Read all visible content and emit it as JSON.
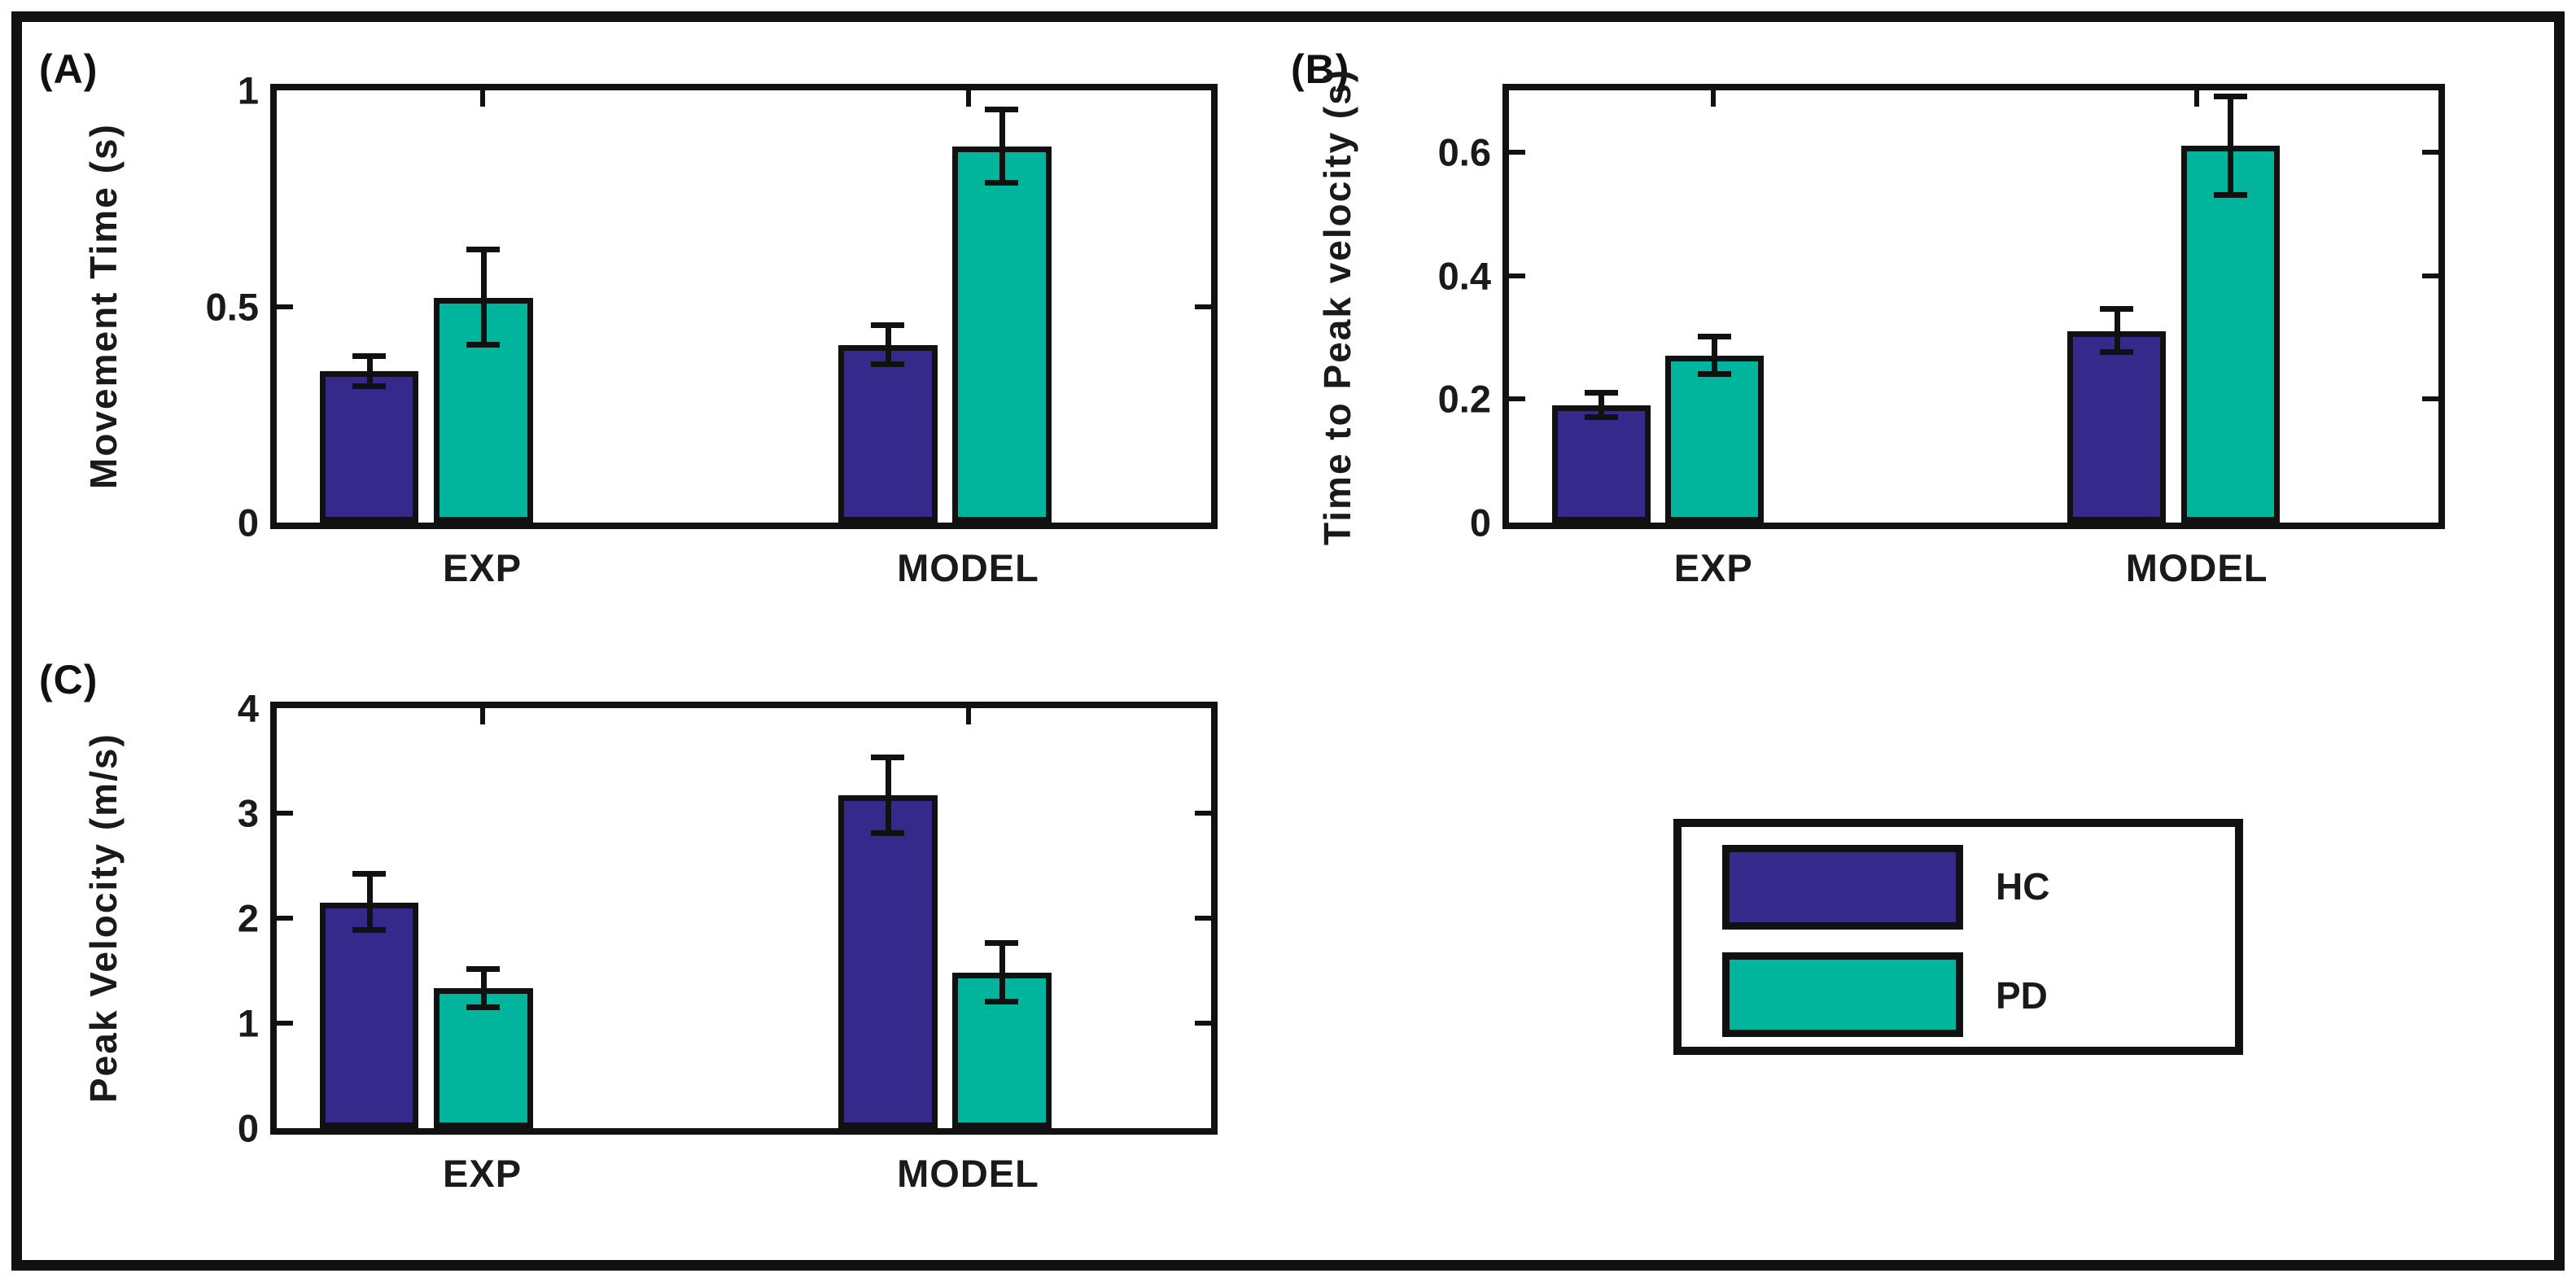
{
  "figure": {
    "background": "#ffffff",
    "frame_color": "#111111",
    "axis_color": "#111111",
    "text_color": "#1a1a1a",
    "legend": {
      "entries": [
        {
          "label": "HC",
          "color": "#352a8c"
        },
        {
          "label": "PD",
          "color": "#00b59b"
        }
      ]
    }
  },
  "chart_data": [
    {
      "type": "bar",
      "panel_label": "(A)",
      "title": "",
      "xlabel": "",
      "ylabel": "Movement Time (s)",
      "categories": [
        "EXP",
        "MODEL"
      ],
      "series": [
        {
          "name": "HC",
          "color": "#352a8c",
          "values": [
            0.35,
            0.41
          ],
          "errors": [
            0.035,
            0.045
          ]
        },
        {
          "name": "PD",
          "color": "#00b59b",
          "values": [
            0.52,
            0.87
          ],
          "errors": [
            0.11,
            0.085
          ]
        }
      ],
      "ylim": [
        0,
        1
      ],
      "yticks": [
        0,
        0.5,
        1
      ],
      "ytick_labels": [
        "0",
        "0.5",
        "1"
      ],
      "grid": false,
      "error_bars": true,
      "legend_position": "none"
    },
    {
      "type": "bar",
      "panel_label": "(B)",
      "title": "",
      "xlabel": "",
      "ylabel": "Time to Peak velocity (s)",
      "categories": [
        "EXP",
        "MODEL"
      ],
      "series": [
        {
          "name": "HC",
          "color": "#352a8c",
          "values": [
            0.19,
            0.31
          ],
          "errors": [
            0.02,
            0.035
          ]
        },
        {
          "name": "PD",
          "color": "#00b59b",
          "values": [
            0.27,
            0.61
          ],
          "errors": [
            0.03,
            0.08
          ]
        }
      ],
      "ylim": [
        0,
        0.7
      ],
      "yticks": [
        0,
        0.2,
        0.4,
        0.6
      ],
      "ytick_labels": [
        "0",
        "0.2",
        "0.4",
        "0.6"
      ],
      "grid": false,
      "error_bars": true,
      "legend_position": "none"
    },
    {
      "type": "bar",
      "panel_label": "(C)",
      "title": "",
      "xlabel": "",
      "ylabel": "Peak Velocity (m/s)",
      "categories": [
        "EXP",
        "MODEL"
      ],
      "series": [
        {
          "name": "HC",
          "color": "#352a8c",
          "values": [
            2.15,
            3.17
          ],
          "errors": [
            0.27,
            0.36
          ]
        },
        {
          "name": "PD",
          "color": "#00b59b",
          "values": [
            1.33,
            1.48
          ],
          "errors": [
            0.18,
            0.28
          ]
        }
      ],
      "ylim": [
        0,
        4
      ],
      "yticks": [
        0,
        1,
        2,
        3,
        4
      ],
      "ytick_labels": [
        "0",
        "1",
        "2",
        "3",
        "4"
      ],
      "grid": false,
      "error_bars": true,
      "legend_position": "none"
    }
  ]
}
